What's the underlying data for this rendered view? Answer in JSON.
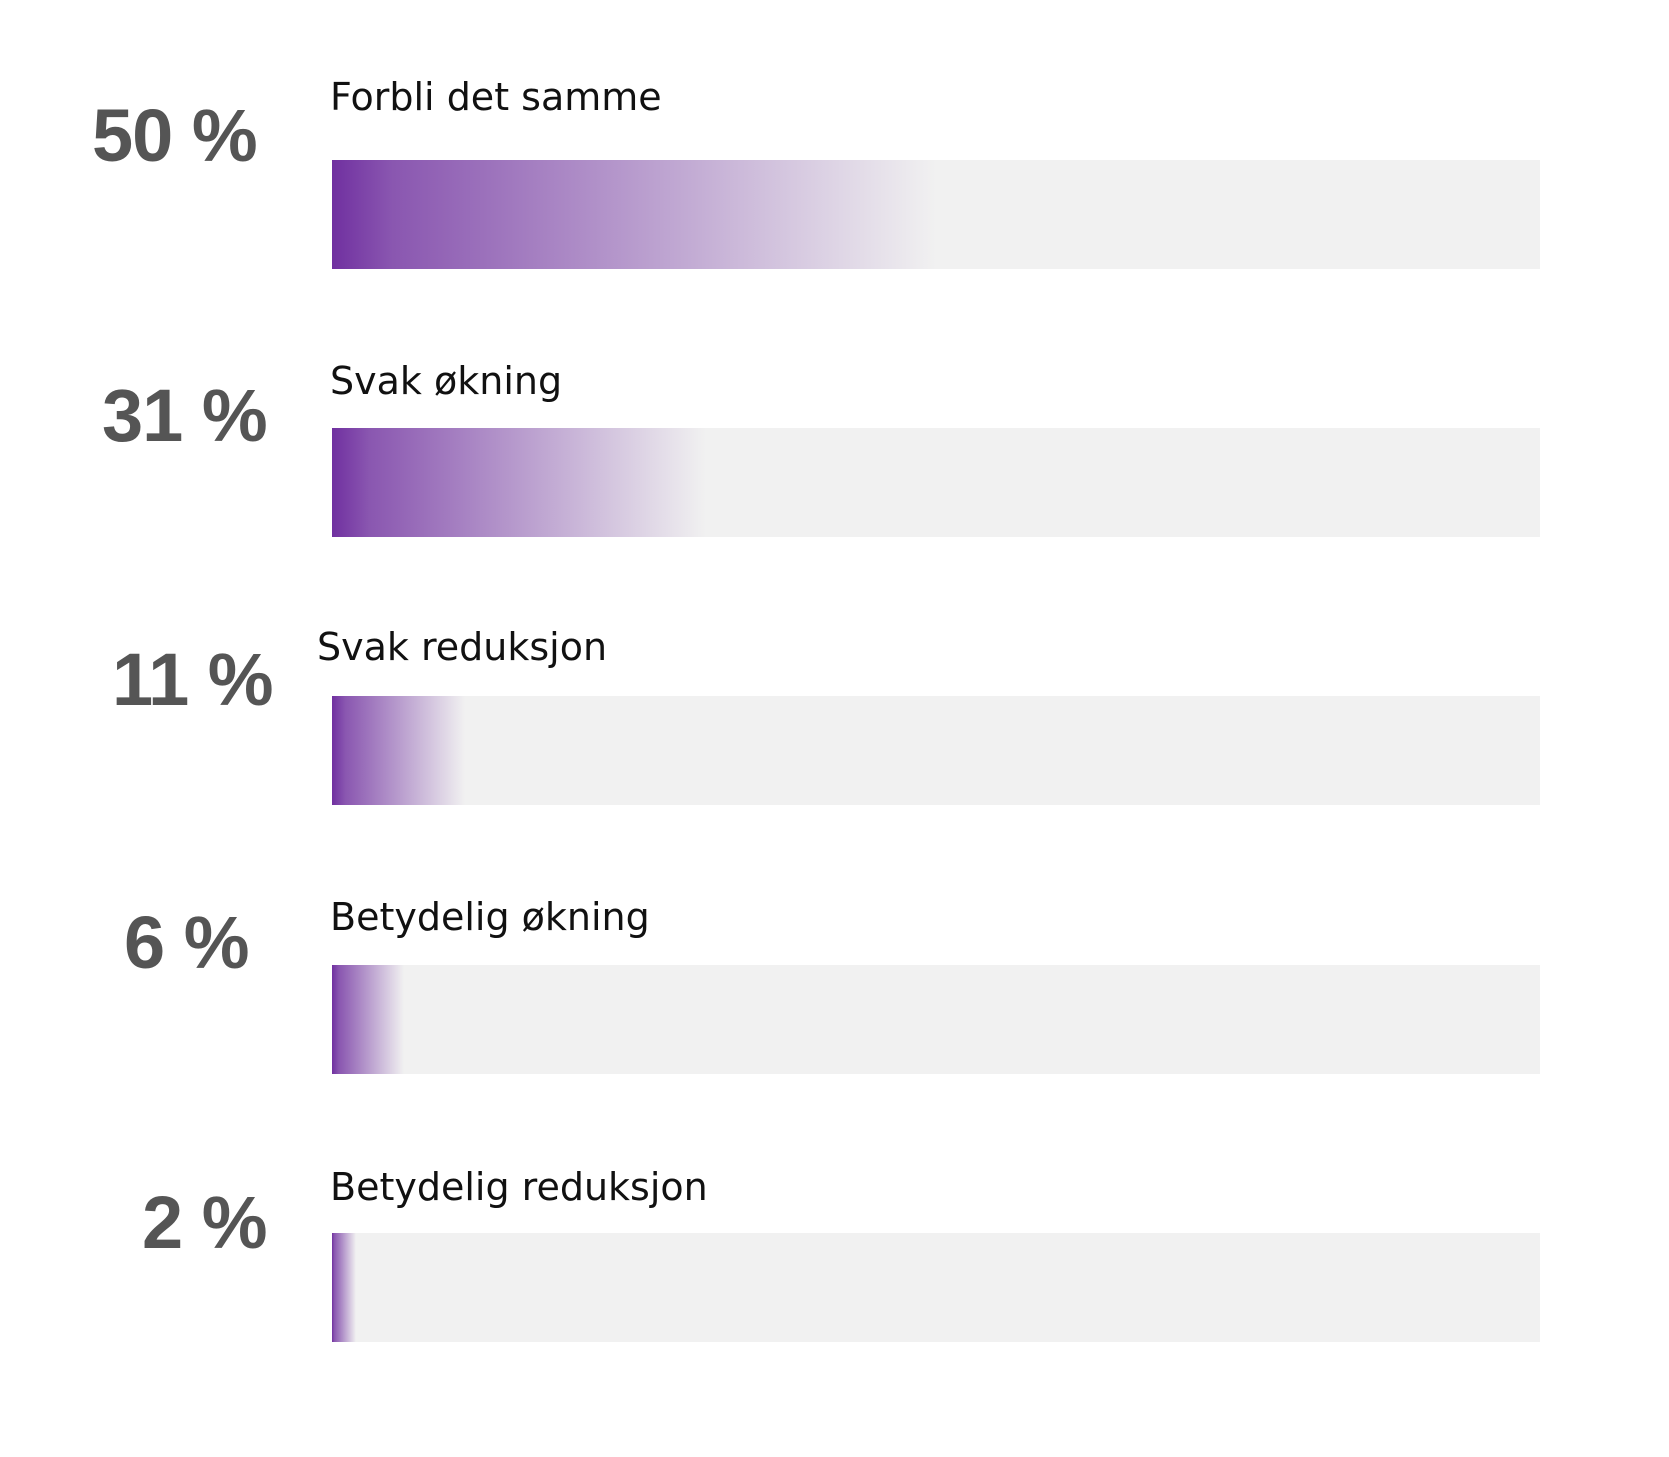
{
  "colors": {
    "bar_start": "#7030a0",
    "track": "#f1f1f1",
    "percent_text": "#555555",
    "label_text": "#111111"
  },
  "rows": [
    {
      "percent_label": "50 %",
      "value": 50,
      "label": "Forbli det samme"
    },
    {
      "percent_label": "31 %",
      "value": 31,
      "label": "Svak økning"
    },
    {
      "percent_label": "11 %",
      "value": 11,
      "label": "Svak reduksjon"
    },
    {
      "percent_label": "6 %",
      "value": 6,
      "label": "Betydelig økning"
    },
    {
      "percent_label": "2 %",
      "value": 2,
      "label": "Betydelig reduksjon"
    }
  ],
  "chart_data": {
    "type": "bar",
    "orientation": "horizontal",
    "title": "",
    "xlabel": "",
    "ylabel": "",
    "categories": [
      "Forbli det samme",
      "Svak økning",
      "Svak reduksjon",
      "Betydelig økning",
      "Betydelig reduksjon"
    ],
    "values": [
      50,
      31,
      11,
      6,
      2
    ],
    "value_labels": [
      "50 %",
      "31 %",
      "11 %",
      "6 %",
      "2 %"
    ],
    "unit": "%",
    "xlim": [
      0,
      100
    ],
    "grid": false,
    "legend": null,
    "style": "gradient fill from purple fading to light grey track"
  }
}
